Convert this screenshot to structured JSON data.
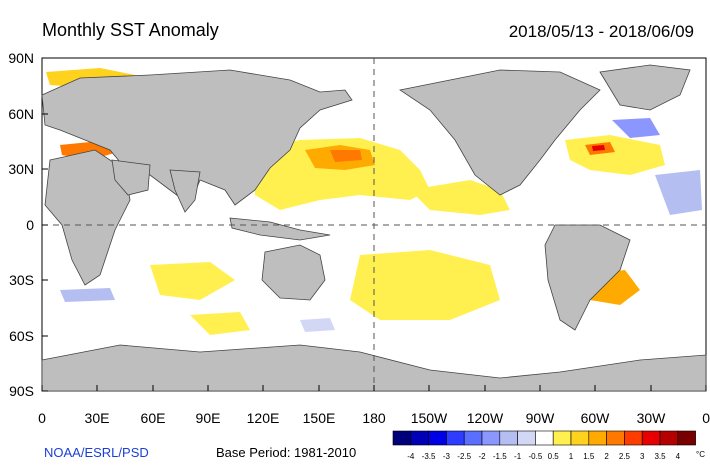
{
  "header": {
    "title": "Monthly SST Anomaly",
    "date_range": "2018/05/13 - 2018/06/09"
  },
  "axes": {
    "y_ticks": [
      "90N",
      "60N",
      "30N",
      "0",
      "30S",
      "60S",
      "90S"
    ],
    "x_ticks": [
      "0",
      "30E",
      "60E",
      "90E",
      "120E",
      "150E",
      "180",
      "150W",
      "120W",
      "90W",
      "60W",
      "30W",
      "0"
    ]
  },
  "footer": {
    "credit": "NOAA/ESRL/PSD",
    "base_period": "Base Period: 1981-2010"
  },
  "colorbar": {
    "labels": [
      "-4",
      "-3.5",
      "-3",
      "-2.5",
      "-2",
      "-1.5",
      "-1",
      "-0.5",
      "0.5",
      "1",
      "1.5",
      "2",
      "2.5",
      "3",
      "3.5",
      "4"
    ],
    "unit": "°C",
    "colors": [
      "#00007a",
      "#0000b4",
      "#0000e6",
      "#2d3cff",
      "#5a6eff",
      "#8c96ff",
      "#b4bef0",
      "#d2d7f5",
      "#ffffff",
      "#fff050",
      "#ffd21e",
      "#ffaa00",
      "#ff7800",
      "#ff3c00",
      "#e60000",
      "#b40000",
      "#780000"
    ]
  },
  "map_colors": {
    "ocean": "#ffffff",
    "land": "#bebebe",
    "coast": "#444444"
  }
}
